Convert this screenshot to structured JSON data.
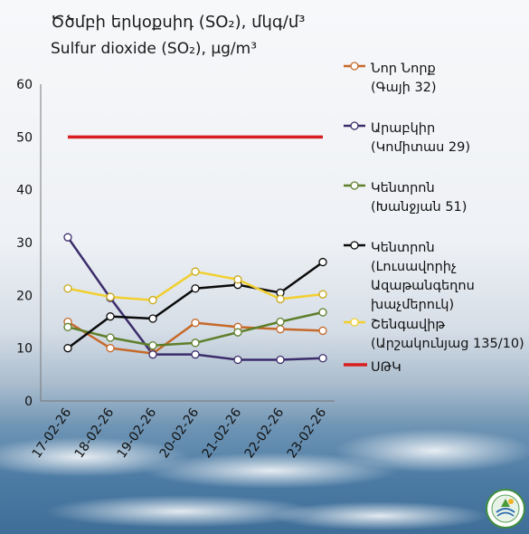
{
  "title_line1": "Ծծմբի երկօքսիդ (SO₂), մկգ/մ³",
  "title_line2": "Sulfur dioxide (SO₂), µg/m³",
  "colors": {
    "nor_nork": "#c6692a",
    "arabkir": "#3b2c6b",
    "kentron_khanjyan": "#5e7f2a",
    "kentron_lusavorich": "#0a0a0a",
    "shengavit": "#f2cf2e",
    "mtk": "#d81e1e"
  },
  "chart_data": {
    "type": "line",
    "title": "Ծծմբի երկօքսիդ (SO₂), մկգ/մ³ / Sulfur dioxide (SO₂), µg/m³",
    "xlabel": "",
    "ylabel": "",
    "categories": [
      "17-02-26",
      "18-02-26",
      "19-02-26",
      "20-02-26",
      "21-02-26",
      "22-02-26",
      "23-02-26"
    ],
    "yticks": [
      "0",
      "10",
      "20",
      "30",
      "40",
      "50",
      "60"
    ],
    "ylim": [
      0,
      60
    ],
    "grid": false,
    "legend_position": "right",
    "series": [
      {
        "name": "Նոր Նորք (Գայի 32)",
        "color": "#c6692a",
        "values": [
          15.0,
          10.0,
          9.0,
          14.8,
          14.0,
          13.6,
          13.3
        ],
        "markers": true
      },
      {
        "name": "Արաբկիր (Կոմիտաս 29)",
        "color": "#3b2c6b",
        "values": [
          31.0,
          19.5,
          8.8,
          8.8,
          7.8,
          7.8,
          8.1
        ],
        "markers": true
      },
      {
        "name": "Կենտրոն (Խանջյան 51)",
        "color": "#5e7f2a",
        "values": [
          14.0,
          12.0,
          10.5,
          11.0,
          13.0,
          15.0,
          16.8
        ],
        "markers": true
      },
      {
        "name": "Կենտրոն (Լուսավորիչ Ազաթանգեղոս խաչմերուկ)",
        "color": "#0a0a0a",
        "values": [
          10.0,
          16.0,
          15.6,
          21.3,
          22.0,
          20.5,
          26.3
        ],
        "markers": true
      },
      {
        "name": "Շենգավիթ (Արշակունյաց 135/10)",
        "color": "#f2cf2e",
        "values": [
          21.3,
          19.7,
          19.1,
          24.5,
          23.0,
          19.3,
          20.2
        ],
        "markers": true
      },
      {
        "name": "ՍԹԿ",
        "color": "#d81e1e",
        "values": [
          50,
          50,
          50,
          50,
          50,
          50,
          50
        ],
        "markers": false
      }
    ]
  },
  "legend": [
    {
      "line1": "Նոր Նորք",
      "line2": "(Գայի 32)",
      "line3": ""
    },
    {
      "line1": "Արաբկիր",
      "line2": "(Կոմիտաս 29)",
      "line3": ""
    },
    {
      "line1": "Կենտրոն",
      "line2": "(Խանջյան 51)",
      "line3": ""
    },
    {
      "line1": "Կենտրոն (Լուսավորիչ",
      "line2": "Ազաթանգեղոս",
      "line3": "խաչմերուկ)"
    },
    {
      "line1": "Շենգավիթ",
      "line2": "(Արշակունյաց 135/10)",
      "line3": ""
    },
    {
      "line1": "ՍԹԿ",
      "line2": "",
      "line3": ""
    }
  ]
}
